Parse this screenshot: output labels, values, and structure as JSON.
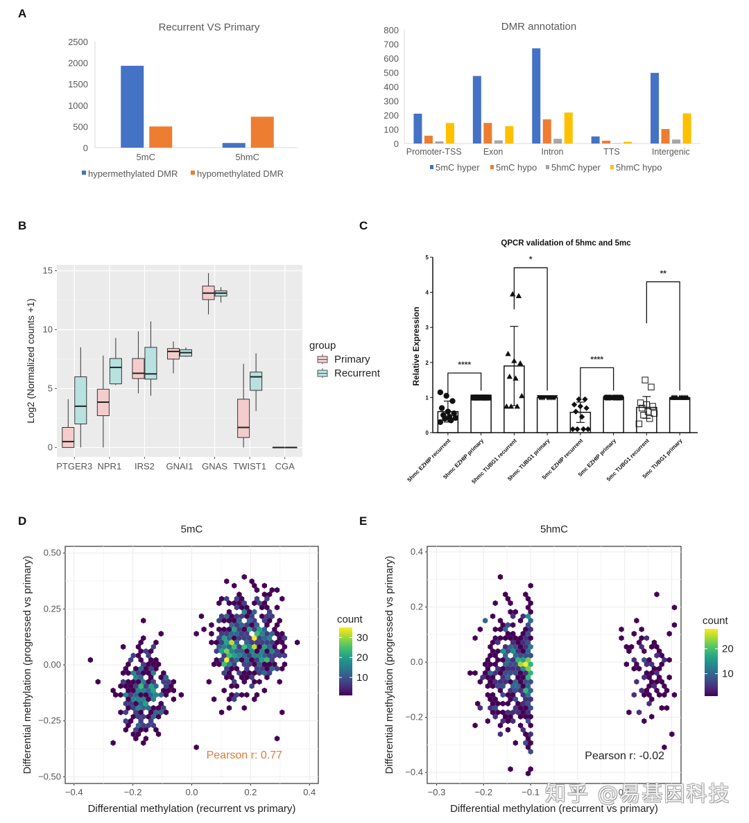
{
  "panels": {
    "A": "A",
    "B": "B",
    "C": "C",
    "D": "D",
    "E": "E"
  },
  "watermark": "知乎 @易基因科技",
  "colors": {
    "blue": "#4472C4",
    "orange": "#ED7D31",
    "gray": "#A5A5A5",
    "yellow": "#FFC000",
    "primary": "#F4CCCC",
    "recurrent": "#B8E2E0",
    "panel_bg": "#EBEBEB"
  },
  "chart_data": [
    {
      "id": "A1",
      "type": "bar",
      "title": "Recurrent VS Primary",
      "categories": [
        "5mC",
        "5hmC"
      ],
      "series": [
        {
          "name": "hypermethylated DMR",
          "color": "#4472C4",
          "values": [
            1930,
            110
          ]
        },
        {
          "name": "hypomethylated DMR",
          "color": "#ED7D31",
          "values": [
            500,
            730
          ]
        }
      ],
      "ylim": [
        0,
        2500
      ],
      "yticks": [
        0,
        500,
        1000,
        1500,
        2000,
        2500
      ],
      "legend": "bottom"
    },
    {
      "id": "A2",
      "type": "bar",
      "title": "DMR annotation",
      "categories": [
        "Promoter-TSS",
        "Exon",
        "Intron",
        "TTS",
        "Intergenic"
      ],
      "series": [
        {
          "name": "5mC hyper",
          "color": "#4472C4",
          "values": [
            210,
            475,
            670,
            50,
            497
          ]
        },
        {
          "name": "5mC hypo",
          "color": "#ED7D31",
          "values": [
            55,
            145,
            170,
            20,
            102
          ]
        },
        {
          "name": "5hmC hyper",
          "color": "#A5A5A5",
          "values": [
            15,
            22,
            33,
            2,
            28
          ]
        },
        {
          "name": "5hmC hypo",
          "color": "#FFC000",
          "values": [
            145,
            122,
            218,
            12,
            212
          ]
        }
      ],
      "ylim": [
        0,
        800
      ],
      "yticks": [
        0,
        100,
        200,
        300,
        400,
        500,
        600,
        700,
        800
      ],
      "legend": "bottom"
    },
    {
      "id": "B",
      "type": "box",
      "title": "",
      "ylabel": "Log2 (Normalized counts +1)",
      "categories": [
        "PTGER3",
        "NPR1",
        "IRS2",
        "GNAI1",
        "GNAS",
        "TWIST1",
        "CGA"
      ],
      "ylim": [
        -0.8,
        15.5
      ],
      "yticks": [
        0,
        5,
        10,
        15
      ],
      "legend_title": "group",
      "legend": "right",
      "series": [
        {
          "name": "Primary",
          "color": "#F4CCCC",
          "boxes": [
            {
              "min": 0,
              "q1": 0,
              "median": 0.5,
              "q3": 1.7,
              "max": 4.1
            },
            {
              "min": 0,
              "q1": 2.7,
              "median": 3.85,
              "q3": 4.95,
              "max": 7.8
            },
            {
              "min": 4.6,
              "q1": 5.85,
              "median": 6.3,
              "q3": 7.55,
              "max": 9.85
            },
            {
              "min": 6.3,
              "q1": 7.5,
              "median": 8.15,
              "q3": 8.4,
              "max": 9.0
            },
            {
              "min": 11.3,
              "q1": 12.55,
              "median": 13.1,
              "q3": 13.7,
              "max": 14.8
            },
            {
              "min": 0,
              "q1": 0.85,
              "median": 1.7,
              "q3": 4.1,
              "max": 7.1
            },
            {
              "min": 0,
              "q1": 0,
              "median": 0,
              "q3": 0,
              "max": 0
            }
          ]
        },
        {
          "name": "Recurrent",
          "color": "#B8E2E0",
          "boxes": [
            {
              "min": 0,
              "q1": 2.0,
              "median": 3.5,
              "q3": 6.0,
              "max": 8.5
            },
            {
              "min": 5.3,
              "q1": 5.4,
              "median": 6.8,
              "q3": 7.55,
              "max": 9.3
            },
            {
              "min": 4.4,
              "q1": 5.8,
              "median": 6.25,
              "q3": 8.5,
              "max": 10.7
            },
            {
              "min": 7.7,
              "q1": 7.75,
              "median": 8.05,
              "q3": 8.3,
              "max": 8.5
            },
            {
              "min": 12.3,
              "q1": 12.85,
              "median": 13.1,
              "q3": 13.3,
              "max": 13.6
            },
            {
              "min": 3.1,
              "q1": 4.85,
              "median": 6.0,
              "q3": 6.4,
              "max": 8.0
            },
            {
              "min": 0,
              "q1": 0,
              "median": 0,
              "q3": 0,
              "max": 0
            }
          ]
        }
      ]
    },
    {
      "id": "C",
      "type": "bar",
      "title": "QPCR validation of 5hmc and 5mc",
      "ylabel": "Relative Expression",
      "ylim": [
        0,
        5
      ],
      "yticks": [
        0,
        1,
        2,
        3,
        4,
        5
      ],
      "categories": [
        "5hmc EZHIP recurrent",
        "5hmc EZHIP primary",
        "5hmc TUBG1 recurrent",
        "5hmc TUBG1 primary",
        "5mc EZHIP recurrent",
        "5mc EZHIP primary",
        "5mc TUBG1 recurrent",
        "5mc TUBG1 primary"
      ],
      "values": [
        0.6,
        1.0,
        1.9,
        1.0,
        0.58,
        1.0,
        0.72,
        1.0
      ],
      "errors": [
        0.3,
        0,
        1.13,
        0,
        0.29,
        0,
        0.31,
        0
      ],
      "markers": [
        "circle",
        "square",
        "triangle",
        "triangle-down",
        "diamond",
        "circle",
        "open-square",
        "triangle"
      ],
      "points": [
        [
          0.3,
          0.35,
          0.4,
          0.42,
          0.45,
          0.5,
          0.55,
          0.6,
          0.7,
          0.9,
          1.05,
          1.15
        ],
        [
          1,
          1,
          1,
          1,
          1,
          1,
          1,
          1,
          1,
          1
        ],
        [
          0.75,
          0.75,
          0.75,
          1.05,
          1.55,
          1.6,
          1.98,
          2.05,
          2.25,
          3.9,
          3.95
        ],
        [
          1,
          1,
          1,
          1,
          1,
          1,
          1,
          1,
          1,
          1
        ],
        [
          0.1,
          0.1,
          0.1,
          0.1,
          0.45,
          0.6,
          0.7,
          0.75,
          0.8,
          0.95,
          0.95
        ],
        [
          1,
          1,
          1,
          1,
          1,
          1,
          1,
          1,
          1,
          1
        ],
        [
          0.25,
          0.4,
          0.5,
          0.55,
          0.6,
          0.7,
          0.75,
          0.8,
          0.85,
          1.3,
          1.5
        ],
        [
          1,
          1,
          1,
          1,
          1,
          1,
          1,
          1,
          1,
          1
        ]
      ],
      "significance": [
        {
          "from": 0,
          "to": 1,
          "label": "****",
          "y": 1.7
        },
        {
          "from": 2,
          "to": 3,
          "label": "*",
          "y": 4.7
        },
        {
          "from": 4,
          "to": 5,
          "label": "****",
          "y": 1.85
        },
        {
          "from": 6,
          "to": 7,
          "label": "**",
          "y": 4.3
        }
      ]
    },
    {
      "id": "D",
      "type": "heatmap",
      "subtype": "hexbin",
      "title": "5mC",
      "xlabel": "Differential methylation (recurrent vs primary)",
      "ylabel": "Differential methylation (progressed vs primary)",
      "xlim": [
        -0.43,
        0.43
      ],
      "ylim": [
        -0.53,
        0.53
      ],
      "xticks": [
        -0.4,
        -0.2,
        0.0,
        0.2,
        0.4
      ],
      "xtick_labels": [
        "−0.4",
        "−0.2",
        "0.0",
        "0.2",
        "0.4"
      ],
      "yticks": [
        -0.5,
        -0.25,
        0.0,
        0.25,
        0.5
      ],
      "ytick_labels": [
        "−0.50",
        "−0.25",
        "0.00",
        "0.25",
        "0.50"
      ],
      "legend_title": "count",
      "colorbar_ticks": [
        10,
        20,
        30
      ],
      "colorbar_range": [
        1,
        35
      ],
      "annotation": "Pearson r: 0.77",
      "annotation_color": "#E07B39",
      "clusters": [
        {
          "cx": -0.16,
          "cy": -0.12,
          "sx": 0.045,
          "sy": 0.1,
          "n": 260,
          "peak": 12
        },
        {
          "cx": 0.2,
          "cy": 0.1,
          "sx": 0.06,
          "sy": 0.11,
          "n": 420,
          "peak": 18
        },
        {
          "cx": 0.12,
          "cy": 0.06,
          "sx": 0.02,
          "sy": 0.04,
          "n": 80,
          "peak": 34
        }
      ]
    },
    {
      "id": "E",
      "type": "heatmap",
      "subtype": "hexbin",
      "title": "5hmC",
      "xlabel": "Differential methylation (recurrent vs primary)",
      "ylabel": "Differential methylation (progressed vs primary)",
      "xlim": [
        -0.32,
        0.22
      ],
      "ylim": [
        -0.44,
        0.42
      ],
      "xticks": [
        -0.3,
        -0.2,
        -0.1,
        0.0,
        0.1,
        0.2
      ],
      "xtick_labels": [
        "−0.3",
        "−0.2",
        "−0.1",
        "0.0",
        "0.1",
        "0.2"
      ],
      "yticks": [
        -0.4,
        -0.2,
        0.0,
        0.2,
        0.4
      ],
      "ytick_labels": [
        "−0.4",
        "−0.2",
        "0.0",
        "0.2",
        "0.4"
      ],
      "legend_title": "count",
      "colorbar_ticks": [
        10,
        20
      ],
      "colorbar_range": [
        1,
        28
      ],
      "annotation": "Pearson r: -0.02",
      "annotation_color": "#222222",
      "clusters": [
        {
          "cx": -0.13,
          "cy": -0.03,
          "sx": 0.035,
          "sy": 0.12,
          "n": 420,
          "peak": 10,
          "xmax": -0.1
        },
        {
          "cx": -0.115,
          "cy": 0.0,
          "sx": 0.01,
          "sy": 0.008,
          "n": 40,
          "peak": 28,
          "xmax": -0.1
        },
        {
          "cx": 0.15,
          "cy": -0.03,
          "sx": 0.025,
          "sy": 0.1,
          "n": 90,
          "peak": 4
        }
      ]
    }
  ]
}
